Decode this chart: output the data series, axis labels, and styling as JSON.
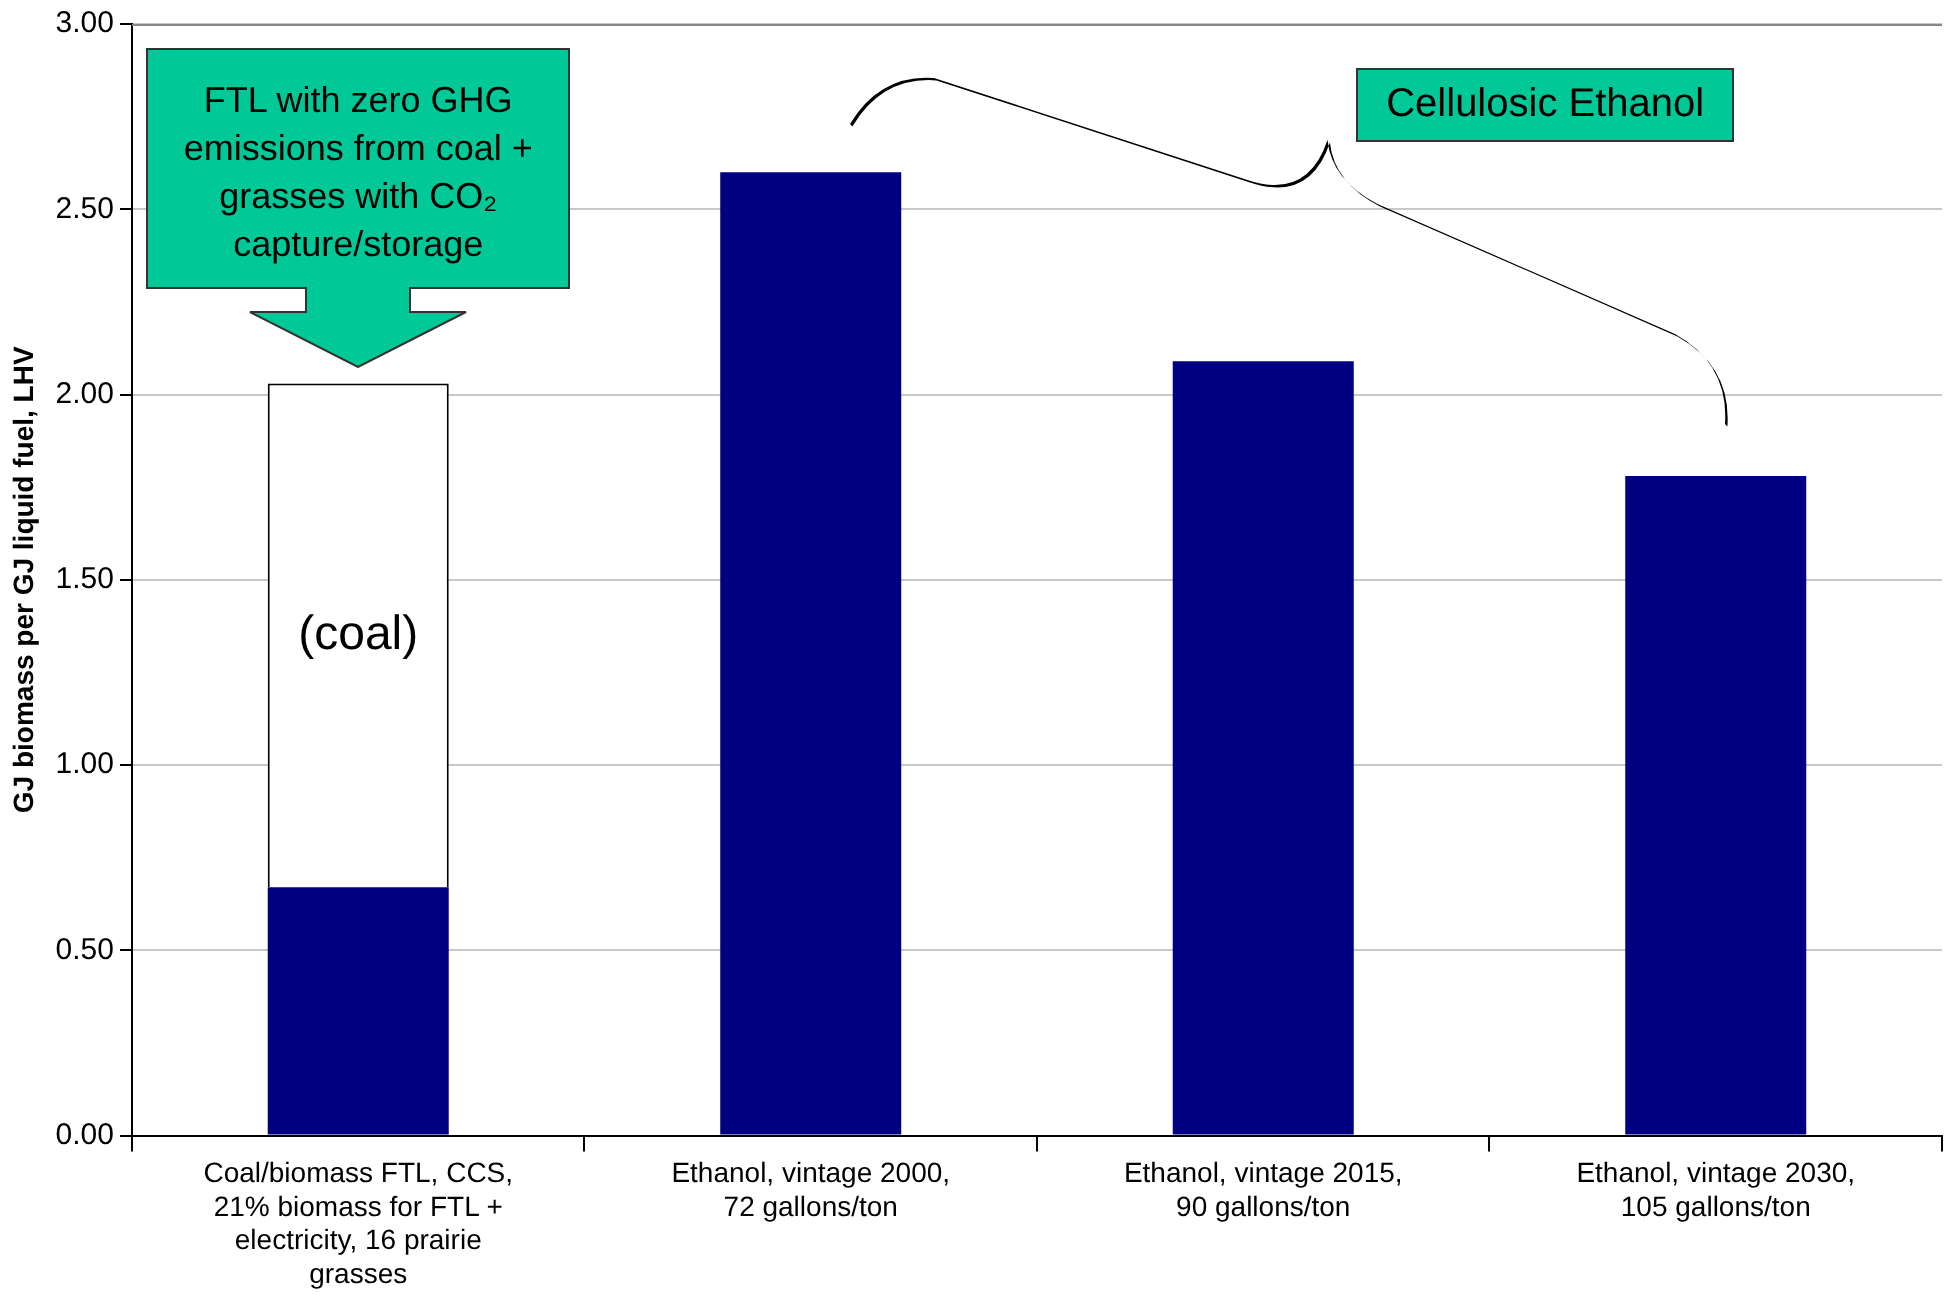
{
  "chart_data": {
    "type": "bar",
    "stacked": true,
    "ylabel": "GJ biomass per GJ liquid fuel, LHV",
    "categories": [
      "Coal/biomass FTL, CCS, 21% biomass for FTL + electricity, 16 prairie grasses",
      "Ethanol, vintage 2000, 72 gallons/ton",
      "Ethanol, vintage 2015, 90 gallons/ton",
      "Ethanol, vintage 2030, 105 gallons/ton"
    ],
    "series": [
      {
        "color": "#000080",
        "values": [
          0.67,
          2.6,
          2.09,
          1.78
        ]
      },
      {
        "name": "(coal)",
        "color": "#ffffff",
        "values": [
          1.36,
          null,
          null,
          null
        ]
      }
    ],
    "ylim": [
      0,
      3
    ],
    "yticks": [
      {
        "value": 0,
        "label": "0.00"
      },
      {
        "value": 0.5,
        "label": "0.50"
      },
      {
        "value": 1,
        "label": "1.00"
      },
      {
        "value": 1.5,
        "label": "1.50"
      },
      {
        "value": 2,
        "label": "2.00"
      },
      {
        "value": 2.5,
        "label": "2.50"
      },
      {
        "value": 3,
        "label": "3.00"
      }
    ],
    "grid": "y",
    "legend": false,
    "annotations": [
      "FTL with zero GHG emissions from coal + grasses with CO₂ capture/storage",
      "Cellulosic Ethanol"
    ]
  }
}
